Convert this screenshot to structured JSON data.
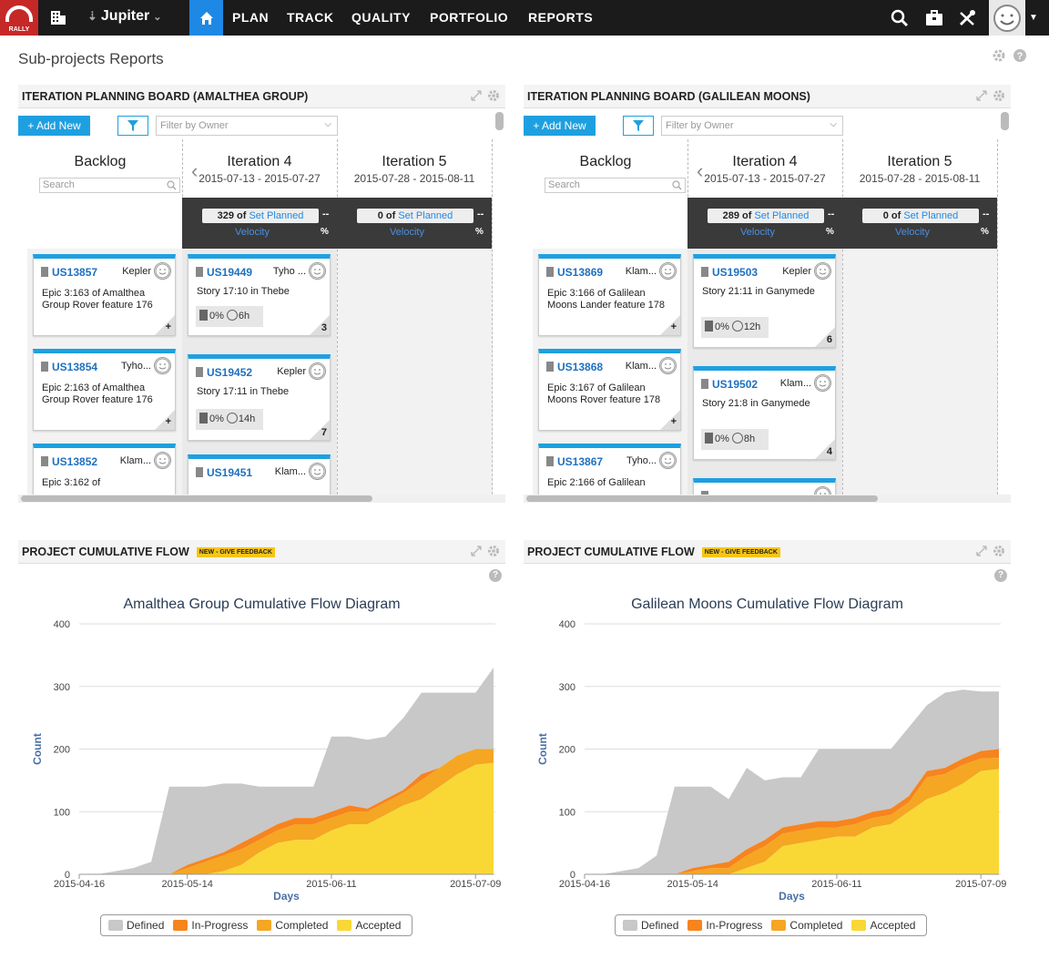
{
  "nav": {
    "logo_text": "RALLY",
    "workspace": "Jupiter",
    "items": [
      "PLAN",
      "TRACK",
      "QUALITY",
      "PORTFOLIO",
      "REPORTS"
    ]
  },
  "page": {
    "title": "Sub-projects Reports"
  },
  "boards": [
    {
      "title": "ITERATION PLANNING BOARD (AMALTHEA GROUP)",
      "add_label": "+ Add New",
      "filter_placeholder": "Filter by Owner",
      "backlog": {
        "title": "Backlog",
        "search_placeholder": "Search"
      },
      "iterations": [
        {
          "title": "Iteration 4",
          "dates": "2015-07-13 - 2015-07-27",
          "count": "329",
          "of": "of",
          "set_planned": "Set Planned",
          "dash": "--",
          "velocity": "Velocity",
          "pct": "%"
        },
        {
          "title": "Iteration 5",
          "dates": "2015-07-28 - 2015-08-11",
          "count": "0",
          "of": "of",
          "set_planned": "Set Planned",
          "dash": "--",
          "velocity": "Velocity",
          "pct": "%"
        }
      ],
      "backlog_cards": [
        {
          "id": "US13857",
          "owner": "Kepler",
          "name": "Epic 3:163 of Amalthea Group Rover feature 176",
          "plus": "+"
        },
        {
          "id": "US13854",
          "owner": "Tyho...",
          "name": "Epic 2:163 of Amalthea Group Rover feature 176",
          "plus": "+"
        },
        {
          "id": "US13852",
          "owner": "Klam...",
          "name": "Epic 3:162 of",
          "plus": ""
        }
      ],
      "iter_cards": [
        {
          "id": "US19449",
          "owner": "Tyho ...",
          "name": "Story 17:10 in Thebe",
          "pct": "0%",
          "hours": "6h",
          "est": "3"
        },
        {
          "id": "US19452",
          "owner": "Kepler",
          "name": "Story 17:11 in Thebe",
          "pct": "0%",
          "hours": "14h",
          "est": "7"
        },
        {
          "id": "US19451",
          "owner": "Klam...",
          "name": "",
          "pct": "",
          "hours": "",
          "est": ""
        }
      ]
    },
    {
      "title": "ITERATION PLANNING BOARD (GALILEAN MOONS)",
      "add_label": "+ Add New",
      "filter_placeholder": "Filter by Owner",
      "backlog": {
        "title": "Backlog",
        "search_placeholder": "Search"
      },
      "iterations": [
        {
          "title": "Iteration 4",
          "dates": "2015-07-13 - 2015-07-27",
          "count": "289",
          "of": "of",
          "set_planned": "Set Planned",
          "dash": "--",
          "velocity": "Velocity",
          "pct": "%"
        },
        {
          "title": "Iteration 5",
          "dates": "2015-07-28 - 2015-08-11",
          "count": "0",
          "of": "of",
          "set_planned": "Set Planned",
          "dash": "--",
          "velocity": "Velocity",
          "pct": "%"
        }
      ],
      "backlog_cards": [
        {
          "id": "US13869",
          "owner": "Klam...",
          "name": "Epic 3:166 of Galilean Moons Lander feature 178",
          "plus": "+"
        },
        {
          "id": "US13868",
          "owner": "Klam...",
          "name": "Epic 3:167 of Galilean Moons Rover feature 178",
          "plus": "+"
        },
        {
          "id": "US13867",
          "owner": "Tyho...",
          "name": "Epic 2:166 of Galilean",
          "plus": ""
        }
      ],
      "iter_cards": [
        {
          "id": "US19503",
          "owner": "Kepler",
          "name": "Story 21:11 in Ganymede",
          "pct": "0%",
          "hours": "12h",
          "est": "6"
        },
        {
          "id": "US19502",
          "owner": "Klam...",
          "name": "Story 21:8 in Ganymede",
          "pct": "0%",
          "hours": "8h",
          "est": "4"
        },
        {
          "id": "",
          "owner": "",
          "name": "",
          "pct": "",
          "hours": "",
          "est": ""
        }
      ]
    }
  ],
  "flow_panels": [
    {
      "title": "PROJECT CUMULATIVE FLOW",
      "badge": "NEW - GIVE FEEDBACK"
    },
    {
      "title": "PROJECT CUMULATIVE FLOW",
      "badge": "NEW - GIVE FEEDBACK"
    }
  ],
  "colors": {
    "defined": "#c8c8c8",
    "in_progress": "#f7841e",
    "completed": "#f5a623",
    "accepted": "#f9d835",
    "accent": "#1ea0e0",
    "nav": "#1b1b1b"
  },
  "chart_data": [
    {
      "type": "area",
      "title": "Amalthea Group Cumulative Flow Diagram",
      "xlabel": "Days",
      "ylabel": "Count",
      "ylim": [
        0,
        400
      ],
      "yticks": [
        0,
        100,
        200,
        300,
        400
      ],
      "x": [
        "2015-04-16",
        "2015-04-23",
        "2015-04-30",
        "2015-05-04",
        "2015-05-08",
        "2015-05-11",
        "2015-05-14",
        "2015-05-18",
        "2015-05-21",
        "2015-05-25",
        "2015-05-28",
        "2015-06-01",
        "2015-06-04",
        "2015-06-08",
        "2015-06-11",
        "2015-06-15",
        "2015-06-18",
        "2015-06-22",
        "2015-06-25",
        "2015-06-29",
        "2015-07-02",
        "2015-07-06",
        "2015-07-09",
        "2015-07-13"
      ],
      "xticks": [
        "2015-04-16",
        "2015-05-14",
        "2015-06-11",
        "2015-07-09"
      ],
      "stacked": true,
      "series": [
        {
          "name": "Accepted",
          "values": [
            0,
            0,
            0,
            0,
            0,
            0,
            0,
            0,
            5,
            15,
            35,
            50,
            55,
            55,
            70,
            80,
            80,
            95,
            110,
            120,
            140,
            160,
            175,
            178
          ]
        },
        {
          "name": "Completed",
          "values": [
            0,
            0,
            0,
            0,
            0,
            0,
            10,
            20,
            25,
            25,
            20,
            20,
            25,
            25,
            20,
            20,
            20,
            20,
            20,
            30,
            30,
            30,
            25,
            22
          ]
        },
        {
          "name": "In-Progress",
          "values": [
            0,
            0,
            0,
            0,
            0,
            0,
            5,
            5,
            5,
            10,
            10,
            10,
            10,
            10,
            10,
            10,
            5,
            5,
            5,
            10,
            0,
            0,
            0,
            0
          ]
        },
        {
          "name": "Defined",
          "values": [
            0,
            0,
            5,
            10,
            20,
            140,
            125,
            115,
            110,
            95,
            75,
            60,
            50,
            50,
            120,
            110,
            110,
            100,
            115,
            130,
            120,
            100,
            90,
            130
          ]
        }
      ]
    },
    {
      "type": "area",
      "title": "Galilean Moons Cumulative Flow Diagram",
      "xlabel": "Days",
      "ylabel": "Count",
      "ylim": [
        0,
        400
      ],
      "yticks": [
        0,
        100,
        200,
        300,
        400
      ],
      "x": [
        "2015-04-16",
        "2015-04-23",
        "2015-04-30",
        "2015-05-04",
        "2015-05-08",
        "2015-05-11",
        "2015-05-14",
        "2015-05-18",
        "2015-05-21",
        "2015-05-25",
        "2015-05-28",
        "2015-06-01",
        "2015-06-04",
        "2015-06-08",
        "2015-06-11",
        "2015-06-15",
        "2015-06-18",
        "2015-06-22",
        "2015-06-25",
        "2015-06-29",
        "2015-07-02",
        "2015-07-06",
        "2015-07-09",
        "2015-07-13"
      ],
      "xticks": [
        "2015-04-16",
        "2015-05-14",
        "2015-06-11",
        "2015-07-09"
      ],
      "stacked": true,
      "series": [
        {
          "name": "Accepted",
          "values": [
            0,
            0,
            0,
            0,
            0,
            0,
            0,
            0,
            0,
            10,
            20,
            45,
            50,
            55,
            60,
            60,
            75,
            80,
            100,
            120,
            130,
            145,
            165,
            168
          ]
        },
        {
          "name": "Completed",
          "values": [
            0,
            0,
            0,
            0,
            0,
            0,
            5,
            10,
            10,
            20,
            25,
            20,
            20,
            20,
            15,
            20,
            15,
            15,
            15,
            35,
            30,
            30,
            20,
            18
          ]
        },
        {
          "name": "In-Progress",
          "values": [
            0,
            0,
            0,
            0,
            0,
            0,
            5,
            5,
            10,
            10,
            10,
            10,
            10,
            10,
            10,
            10,
            10,
            10,
            10,
            10,
            10,
            10,
            12,
            14
          ]
        },
        {
          "name": "Defined",
          "values": [
            0,
            0,
            5,
            10,
            30,
            140,
            130,
            125,
            100,
            130,
            95,
            80,
            75,
            115,
            115,
            110,
            100,
            95,
            110,
            105,
            120,
            110,
            95,
            92
          ]
        }
      ]
    }
  ]
}
